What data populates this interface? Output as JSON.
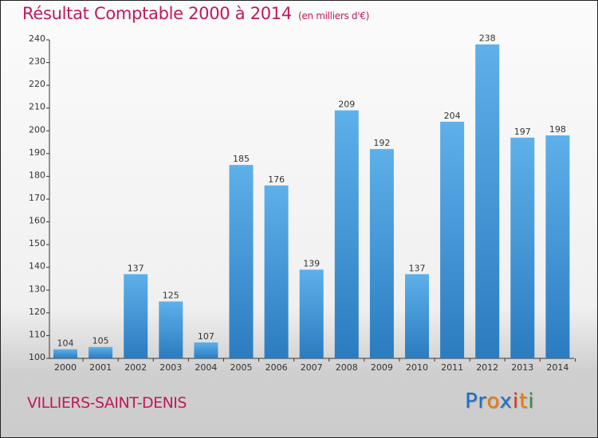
{
  "header": {
    "title": "Résultat Comptable 2000 à 2014",
    "subtitle": "(en milliers d'€)"
  },
  "footer": {
    "commune": "VILLIERS-SAINT-DENIS",
    "logo": [
      "P",
      "r",
      "o",
      "x",
      "i",
      "t",
      "i"
    ],
    "logo_colors": [
      "#1e6fc4",
      "#1e6fc4",
      "#f07a00",
      "#1e6fc4",
      "#e83010",
      "#f07a00",
      "#2a9a3a"
    ]
  },
  "chart_data": {
    "type": "bar",
    "title": "Résultat Comptable 2000 à 2014",
    "xlabel": "",
    "ylabel": "",
    "categories": [
      "2000",
      "2001",
      "2002",
      "2003",
      "2004",
      "2005",
      "2006",
      "2007",
      "2008",
      "2009",
      "2010",
      "2011",
      "2012",
      "2013",
      "2014"
    ],
    "values": [
      104,
      105,
      137,
      125,
      107,
      185,
      176,
      139,
      209,
      192,
      137,
      204,
      238,
      197,
      198
    ],
    "ylim": [
      100,
      240
    ],
    "yticks": [
      100,
      110,
      120,
      130,
      140,
      150,
      160,
      170,
      180,
      190,
      200,
      210,
      220,
      230,
      240
    ],
    "grid": false,
    "bar_color": "#3a93d8"
  }
}
